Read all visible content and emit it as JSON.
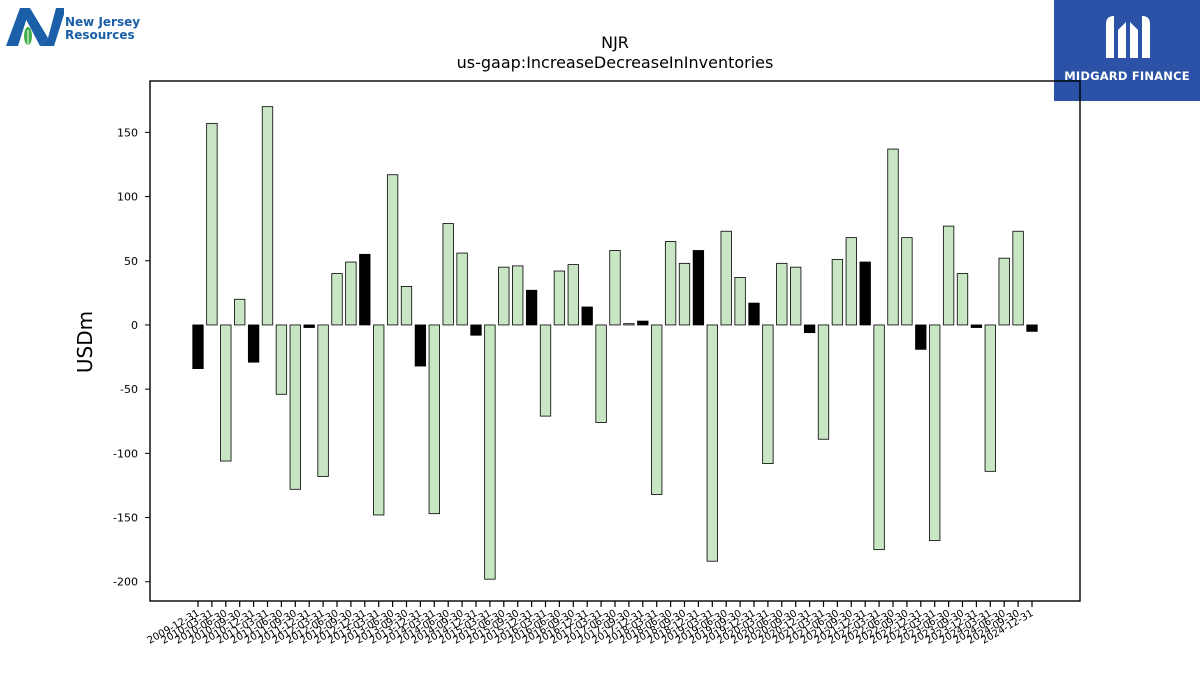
{
  "logos": {
    "left": {
      "line1": "New Jersey",
      "line2": "Resources"
    },
    "right": {
      "name": "MIDGARD FINANCE"
    }
  },
  "colors": {
    "positive_bar": "#c8e6c4",
    "negative_or_partial_bar": "#000000",
    "logo_blue": "#2b52a6"
  },
  "chart_data": {
    "type": "bar",
    "title": "NJR",
    "subtitle": "us-gaap:IncreaseDecreaseInInventories",
    "ylabel": "USDm",
    "xlabel": "",
    "ylim": [
      -215,
      190
    ],
    "yticks": [
      -200,
      -150,
      -100,
      -50,
      0,
      50,
      100,
      150
    ],
    "grid": false,
    "categories": [
      "2009-12-31",
      "2010-03-31",
      "2010-06-30",
      "2010-09-30",
      "2010-12-31",
      "2011-03-31",
      "2011-06-30",
      "2011-09-30",
      "2011-12-31",
      "2012-03-31",
      "2012-06-30",
      "2012-09-30",
      "2012-12-31",
      "2013-03-31",
      "2013-06-30",
      "2013-09-30",
      "2013-12-31",
      "2014-03-31",
      "2014-06-30",
      "2014-09-30",
      "2014-12-31",
      "2015-03-31",
      "2015-06-30",
      "2015-09-30",
      "2015-12-31",
      "2016-03-31",
      "2016-06-30",
      "2016-09-30",
      "2016-12-31",
      "2017-03-31",
      "2017-06-30",
      "2017-09-30",
      "2017-12-31",
      "2018-03-31",
      "2018-06-30",
      "2018-09-30",
      "2018-12-31",
      "2019-03-31",
      "2019-06-30",
      "2019-09-30",
      "2019-12-31",
      "2020-03-31",
      "2020-06-30",
      "2020-09-30",
      "2020-12-31",
      "2021-03-31",
      "2021-06-30",
      "2021-09-30",
      "2021-12-31",
      "2022-03-31",
      "2022-06-30",
      "2022-09-30",
      "2022-12-31",
      "2023-03-31",
      "2023-06-30",
      "2023-09-30",
      "2023-12-31",
      "2024-03-31",
      "2024-06-30",
      "2024-09-30",
      "2024-12-31"
    ],
    "values": [
      -34,
      157,
      -106,
      20,
      -29,
      170,
      -54,
      -128,
      -2,
      -118,
      40,
      49,
      55,
      -148,
      117,
      30,
      -32,
      -147,
      79,
      56,
      -8,
      -198,
      45,
      46,
      27,
      -71,
      42,
      47,
      14,
      -76,
      58,
      1,
      3,
      -132,
      65,
      48,
      58,
      -184,
      73,
      37,
      17,
      -108,
      48,
      45,
      -6,
      -89,
      51,
      68,
      49,
      -175,
      137,
      68,
      -19,
      -168,
      77,
      40,
      -2,
      -114,
      52,
      73,
      -5
    ],
    "bar_style": [
      "dark",
      "light",
      "light",
      "light",
      "dark",
      "light",
      "light",
      "light",
      "dark",
      "light",
      "light",
      "light",
      "dark",
      "light",
      "light",
      "light",
      "dark",
      "light",
      "light",
      "light",
      "dark",
      "light",
      "light",
      "light",
      "dark",
      "light",
      "light",
      "light",
      "dark",
      "light",
      "light",
      "light",
      "dark",
      "light",
      "light",
      "light",
      "dark",
      "light",
      "light",
      "light",
      "dark",
      "light",
      "light",
      "light",
      "dark",
      "light",
      "light",
      "light",
      "dark",
      "light",
      "light",
      "light",
      "dark",
      "light",
      "light",
      "light",
      "dark",
      "light",
      "light",
      "light",
      "dark"
    ]
  }
}
